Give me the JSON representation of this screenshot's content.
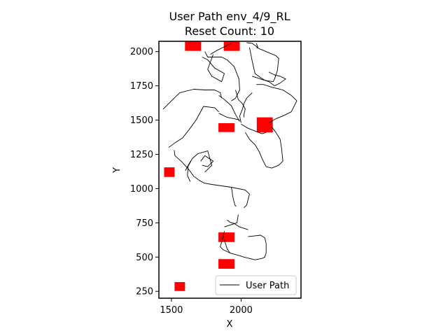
{
  "chart_data": {
    "type": "line",
    "title_line1": "User Path env_4/9_RL",
    "title_line2": "Reset Count: 10",
    "xlabel": "X",
    "ylabel": "Y",
    "xlim": [
      1410,
      2430
    ],
    "ylim": [
      200,
      2075
    ],
    "xticks": [
      1500,
      2000
    ],
    "yticks": [
      250,
      500,
      750,
      1000,
      1250,
      1500,
      1750,
      2000
    ],
    "grid": false,
    "legend": {
      "location": "lower-right"
    },
    "colors": {
      "path": "#000000",
      "obstacle": "#ff0000",
      "axes": "#000000"
    },
    "series": [
      {
        "name": "User Path",
        "segments": [
          [
            [
              1880,
              720
            ],
            [
              1970,
              750
            ],
            [
              1980,
              810
            ]
          ],
          [
            [
              1965,
              870
            ],
            [
              1955,
              880
            ],
            [
              1950,
              900
            ],
            [
              1945,
              920
            ],
            [
              1938,
              955
            ],
            [
              1935,
              985
            ],
            [
              1930,
              1010
            ]
          ],
          [
            [
              1930,
              1010
            ],
            [
              2030,
              990
            ],
            [
              2060,
              960
            ],
            [
              2040,
              880
            ],
            [
              2020,
              860
            ]
          ],
          [
            [
              1930,
              1010
            ],
            [
              1860,
              1020
            ],
            [
              1790,
              1030
            ],
            [
              1735,
              1040
            ],
            [
              1700,
              1060
            ],
            [
              1660,
              1090
            ],
            [
              1620,
              1145
            ],
            [
              1570,
              1200
            ],
            [
              1525,
              1240
            ],
            [
              1520,
              1280
            ]
          ],
          [
            [
              1635,
              1050
            ],
            [
              1615,
              1095
            ],
            [
              1620,
              1165
            ],
            [
              1640,
              1200
            ]
          ],
          [
            [
              1600,
              1130
            ],
            [
              1620,
              1170
            ],
            [
              1650,
              1220
            ],
            [
              1690,
              1255
            ],
            [
              1760,
              1275
            ],
            [
              1790,
              1170
            ],
            [
              1740,
              1120
            ]
          ],
          [
            [
              1740,
              1240
            ],
            [
              1800,
              1200
            ],
            [
              1760,
              1160
            ],
            [
              1720,
              1170
            ]
          ],
          [
            [
              1740,
              1240
            ],
            [
              1710,
              1200
            ]
          ],
          [
            [
              1840,
              1560
            ],
            [
              1810,
              1590
            ],
            [
              1730,
              1600
            ],
            [
              1680,
              1505
            ],
            [
              1630,
              1435
            ],
            [
              1580,
              1370
            ],
            [
              1520,
              1330
            ],
            [
              1480,
              1300
            ]
          ],
          [
            [
              1440,
              1580
            ],
            [
              1500,
              1640
            ],
            [
              1560,
              1700
            ],
            [
              1660,
              1725
            ],
            [
              1740,
              1720
            ],
            [
              1810,
              1720
            ],
            [
              1850,
              1700
            ],
            [
              1860,
              1660
            ]
          ],
          [
            [
              1840,
              1680
            ],
            [
              1880,
              1650
            ],
            [
              1930,
              1605
            ],
            [
              1960,
              1540
            ],
            [
              1990,
              1490
            ]
          ],
          [
            [
              1930,
              1640
            ],
            [
              1960,
              1660
            ],
            [
              1990,
              1720
            ],
            [
              1985,
              1800
            ],
            [
              1950,
              1890
            ],
            [
              1900,
              1940
            ],
            [
              1860,
              1960
            ],
            [
              1800,
              1960
            ],
            [
              1760,
              1960
            ],
            [
              1740,
              2000
            ]
          ],
          [
            [
              1720,
              1960
            ],
            [
              1760,
              1940
            ],
            [
              1810,
              1880
            ],
            [
              1880,
              1840
            ],
            [
              1860,
              1780
            ],
            [
              1790,
              1820
            ],
            [
              1760,
              1870
            ]
          ],
          [
            [
              1760,
              1870
            ],
            [
              1800,
              1980
            ]
          ],
          [
            [
              1780,
              1980
            ],
            [
              1830,
              2010
            ],
            [
              1890,
              2040
            ],
            [
              1930,
              2060
            ]
          ],
          [
            [
              2110,
              2060
            ],
            [
              2120,
              2030
            ],
            [
              2080,
              2060
            ],
            [
              2040,
              2065
            ]
          ],
          [
            [
              2110,
              2030
            ],
            [
              2180,
              2000
            ],
            [
              2250,
              1970
            ],
            [
              2270,
              1950
            ],
            [
              2260,
              1860
            ],
            [
              2240,
              1800
            ],
            [
              2230,
              1780
            ],
            [
              2170,
              1790
            ],
            [
              2140,
              1810
            ],
            [
              2100,
              1840
            ],
            [
              2080,
              1930
            ],
            [
              2070,
              1980
            ],
            [
              2060,
              2030
            ]
          ],
          [
            [
              2080,
              1820
            ],
            [
              2140,
              1800
            ],
            [
              2200,
              1780
            ],
            [
              2240,
              1750
            ],
            [
              2280,
              1770
            ],
            [
              2320,
              1800
            ],
            [
              2280,
              1820
            ],
            [
              2240,
              1830
            ],
            [
              2200,
              1850
            ]
          ],
          [
            [
              2110,
              1760
            ],
            [
              2160,
              1760
            ],
            [
              2220,
              1740
            ],
            [
              2300,
              1720
            ],
            [
              2360,
              1680
            ],
            [
              2400,
              1640
            ],
            [
              2360,
              1560
            ],
            [
              2300,
              1530
            ],
            [
              2250,
              1510
            ],
            [
              2200,
              1480
            ]
          ],
          [
            [
              2080,
              1700
            ],
            [
              2040,
              1660
            ],
            [
              2020,
              1620
            ],
            [
              2010,
              1580
            ],
            [
              1990,
              1530
            ],
            [
              2000,
              1480
            ]
          ],
          [
            [
              1960,
              1720
            ],
            [
              1980,
              1650
            ],
            [
              2010,
              1620
            ],
            [
              2030,
              1580
            ],
            [
              2020,
              1540
            ],
            [
              2020,
              1520
            ]
          ],
          [
            [
              2000,
              1470
            ],
            [
              2050,
              1440
            ],
            [
              2100,
              1420
            ],
            [
              2150,
              1400
            ],
            [
              2180,
              1410
            ]
          ],
          [
            [
              2030,
              1410
            ],
            [
              2060,
              1360
            ],
            [
              2100,
              1320
            ],
            [
              2130,
              1270
            ],
            [
              2150,
              1220
            ],
            [
              2180,
              1160
            ],
            [
              2220,
              1150
            ],
            [
              2270,
              1170
            ],
            [
              2300,
              1200
            ],
            [
              2290,
              1300
            ],
            [
              2280,
              1360
            ],
            [
              2250,
              1410
            ],
            [
              2220,
              1450
            ]
          ],
          [
            [
              1840,
              1550
            ],
            [
              1900,
              1520
            ],
            [
              1950,
              1510
            ],
            [
              1990,
              1500
            ]
          ],
          [
            [
              1880,
              690
            ],
            [
              1870,
              640
            ],
            [
              1860,
              610
            ],
            [
              1850,
              575
            ],
            [
              1870,
              555
            ],
            [
              1920,
              530
            ],
            [
              1990,
              510
            ],
            [
              2020,
              500
            ],
            [
              2060,
              490
            ],
            [
              2100,
              480
            ],
            [
              2150,
              490
            ],
            [
              2170,
              500
            ],
            [
              2180,
              530
            ],
            [
              2180,
              600
            ],
            [
              2170,
              640
            ],
            [
              2140,
              660
            ],
            [
              2100,
              655
            ],
            [
              2050,
              650
            ]
          ],
          [
            [
              2050,
              700
            ],
            [
              1990,
              720
            ],
            [
              1950,
              745
            ],
            [
              1920,
              755
            ],
            [
              1900,
              770
            ]
          ],
          [
            [
              1880,
              625
            ],
            [
              1900,
              560
            ],
            [
              1920,
              530
            ]
          ]
        ]
      }
    ],
    "obstacles": [
      {
        "x": 1655,
        "y": 2040,
        "w": 115,
        "h": 70
      },
      {
        "x": 1933,
        "y": 2040,
        "w": 115,
        "h": 70
      },
      {
        "x": 1895,
        "y": 1445,
        "w": 115,
        "h": 65
      },
      {
        "x": 2170,
        "y": 1465,
        "w": 115,
        "h": 110
      },
      {
        "x": 1485,
        "y": 1120,
        "w": 75,
        "h": 70
      },
      {
        "x": 1895,
        "y": 645,
        "w": 115,
        "h": 70
      },
      {
        "x": 1895,
        "y": 450,
        "w": 115,
        "h": 70
      },
      {
        "x": 1560,
        "y": 285,
        "w": 75,
        "h": 65
      }
    ]
  }
}
